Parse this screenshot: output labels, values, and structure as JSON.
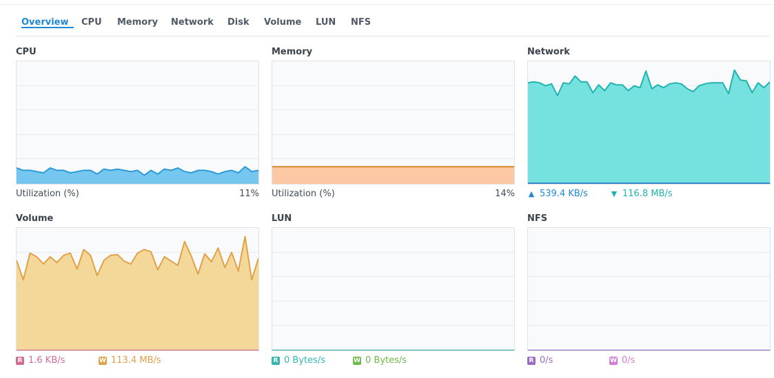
{
  "tabs": [
    {
      "label": "Overview",
      "active": true
    },
    {
      "label": "CPU"
    },
    {
      "label": "Memory"
    },
    {
      "label": "Network"
    },
    {
      "label": "Disk"
    },
    {
      "label": "Volume"
    },
    {
      "label": "LUN"
    },
    {
      "label": "NFS"
    }
  ],
  "colors": {
    "accent": "#1e87d6",
    "cpu_fill": "#75c7ef",
    "cpu_line": "#2c9ad6",
    "memory_fill": "#fcc8a3",
    "memory_line": "#d7872c",
    "network_fill": "#76e2e0",
    "network_line": "#1eb3af",
    "network_down_line": "#2a78c6",
    "volume_fill": "#f3d89a",
    "volume_line": "#e1a146",
    "read_badge": "#d46a92",
    "write_badge": "#e0a14b",
    "lun_read_badge": "#36b6b1",
    "lun_write_badge": "#6fb94a",
    "nfs_read_badge": "#9a6cc4",
    "nfs_write_badge": "#cf7fd3"
  },
  "panels": {
    "cpu": {
      "title": "CPU",
      "footer_label": "Utilization (%)",
      "footer_value": "11%",
      "chart_data": {
        "type": "area",
        "ylim": [
          0,
          100
        ],
        "values": [
          13,
          11,
          11,
          10,
          9,
          13,
          11,
          11,
          9,
          10,
          11,
          11,
          8,
          12,
          11,
          12,
          11,
          10,
          11,
          7,
          11,
          8,
          12,
          11,
          13,
          10,
          9,
          11,
          11,
          10,
          8,
          10,
          11,
          9,
          14,
          10,
          11
        ]
      }
    },
    "memory": {
      "title": "Memory",
      "footer_label": "Utilization (%)",
      "footer_value": "14%",
      "chart_data": {
        "type": "area",
        "ylim": [
          0,
          100
        ],
        "values": [
          14,
          14,
          14,
          14,
          14,
          14,
          14,
          14,
          14,
          14,
          14,
          14,
          14,
          14,
          14,
          14,
          14,
          14,
          14,
          14,
          14,
          14,
          14,
          14,
          14,
          14,
          14,
          14,
          14,
          14,
          14,
          14,
          14,
          14,
          14,
          14,
          14
        ]
      }
    },
    "network": {
      "title": "Network",
      "up_icon": "arrow-up-icon",
      "up_value": "539.4 KB/s",
      "down_icon": "arrow-down-icon",
      "down_value": "116.8 MB/s",
      "chart_data": {
        "type": "area",
        "ylim": [
          0,
          125
        ],
        "series": [
          {
            "values": [
              103,
              104,
              103,
              100,
              102,
              90,
              103,
              102,
              110,
              104,
              104,
              93,
              101,
              95,
              103,
              101,
              101,
              95,
              100,
              98,
              115,
              97,
              101,
              98,
              102,
              103,
              102,
              97,
              94,
              100,
              102,
              103,
              103,
              103,
              92,
              116,
              106,
              105,
              93,
              103,
              98,
              104
            ]
          },
          {
            "values": [
              0.5,
              0.5,
              0.5,
              0.5,
              0.5,
              0.5,
              0.5,
              0.5,
              0.5,
              0.5,
              0.5,
              0.5,
              0.5,
              0.5,
              0.5,
              0.5,
              0.5,
              0.5,
              0.5,
              0.5,
              0.5,
              0.5,
              0.5,
              0.5,
              0.5,
              0.5,
              0.5,
              0.5,
              0.5,
              0.5,
              0.5,
              0.5,
              0.5,
              0.5,
              0.5,
              0.5,
              0.5,
              0.5,
              0.5,
              0.5,
              0.5,
              0.5
            ]
          }
        ]
      }
    },
    "volume": {
      "title": "Volume",
      "read_badge": "R",
      "read_value": "1.6 KB/s",
      "write_badge": "W",
      "write_value": "113.4 MB/s",
      "chart_data": {
        "type": "area",
        "ylim": [
          0,
          170
        ],
        "series": [
          {
            "values": [
              125,
              98,
              135,
              130,
              120,
              130,
              122,
              132,
              135,
              113,
              140,
              132,
              104,
              125,
              132,
              133,
              124,
              120,
              135,
              140,
              137,
              112,
              130,
              124,
              118,
              151,
              131,
              106,
              134,
              123,
              142,
              115,
              136,
              110,
              158,
              98,
              128
            ]
          },
          {
            "values": [
              0.1,
              0.1,
              0.1,
              0.1,
              0.1,
              0.1,
              0.1,
              0.1,
              0.1,
              0.1,
              0.1,
              0.1,
              0.1,
              0.1,
              0.1,
              0.1,
              0.1,
              0.1,
              0.1,
              0.1,
              0.1,
              0.1,
              0.1,
              0.1,
              0.1,
              0.1,
              0.1,
              0.1,
              0.1,
              0.1,
              0.1,
              0.1,
              0.1,
              0.1,
              0.1,
              0.1,
              0.1
            ]
          }
        ]
      }
    },
    "lun": {
      "title": "LUN",
      "read_badge": "R",
      "read_value": "0 Bytes/s",
      "write_badge": "W",
      "write_value": "0 Bytes/s",
      "chart_data": {
        "type": "area",
        "ylim": [
          0,
          1
        ],
        "values": [
          0,
          0
        ]
      }
    },
    "nfs": {
      "title": "NFS",
      "read_badge": "R",
      "read_value": "0/s",
      "write_badge": "W",
      "write_value": "0/s",
      "chart_data": {
        "type": "area",
        "ylim": [
          0,
          1
        ],
        "values": [
          0,
          0
        ]
      }
    }
  }
}
